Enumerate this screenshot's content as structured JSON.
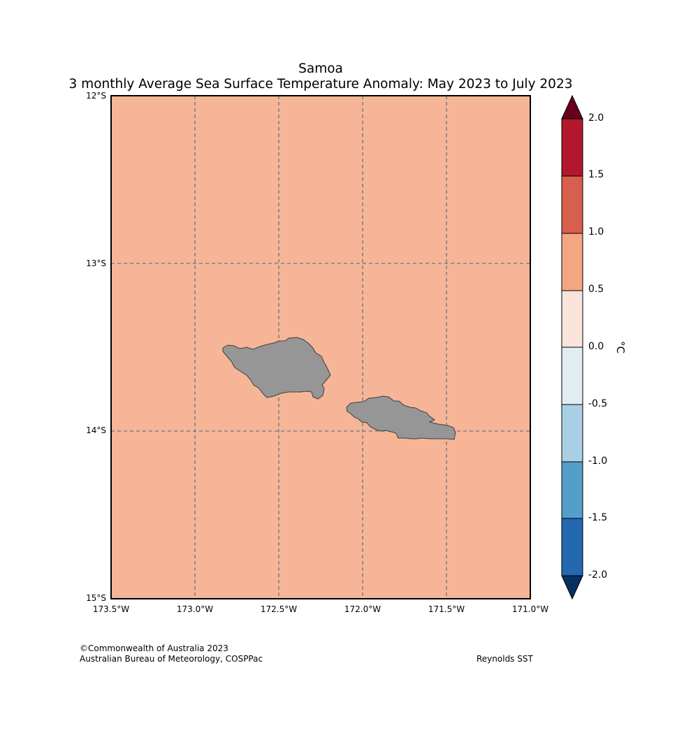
{
  "title": {
    "line1": "Samoa",
    "line2": "3 monthly Average Sea Surface Temperature Anomaly: May 2023 to July 2023"
  },
  "map": {
    "fill_color": "#f6b597",
    "land_color": "#969696",
    "grid_color": "#808080",
    "lat_labels": [
      "12°S",
      "13°S",
      "14°S",
      "15°S"
    ],
    "lon_labels": [
      "173.5°W",
      "173.0°W",
      "172.5°W",
      "172.0°W",
      "171.5°W",
      "171.0°W"
    ],
    "extent": {
      "lon_min": -173.5,
      "lon_max": -171.0,
      "lat_min": -15.0,
      "lat_max": -12.0
    },
    "islands": [
      "Savai'i",
      "Upolu"
    ]
  },
  "colorbar": {
    "unit": "°C",
    "ticks": [
      "2.0",
      "1.5",
      "1.0",
      "0.5",
      "0.0",
      "-0.5",
      "-1.0",
      "-1.5",
      "-2.0"
    ],
    "bins": [
      {
        "range": "> 2.0",
        "color": "#67001f"
      },
      {
        "range": "1.5 to 2.0",
        "color": "#b2182b"
      },
      {
        "range": "1.0 to 1.5",
        "color": "#d6604d"
      },
      {
        "range": "0.5 to 1.0",
        "color": "#f4a582"
      },
      {
        "range": "0.0 to 0.5",
        "color": "#fae4da"
      },
      {
        "range": "-0.5 to 0.0",
        "color": "#e1ecf3"
      },
      {
        "range": "-1.0 to -0.5",
        "color": "#a9cfe4"
      },
      {
        "range": "-1.5 to -1.0",
        "color": "#559ec9"
      },
      {
        "range": "-2.0 to -1.5",
        "color": "#2468b0"
      },
      {
        "range": "< -2.0",
        "color": "#053061"
      }
    ]
  },
  "footer": {
    "copyright": "©Commonwealth of Australia 2023",
    "agency": "Australian Bureau of Meteorology, COSPPac",
    "source": "Reynolds SST"
  }
}
